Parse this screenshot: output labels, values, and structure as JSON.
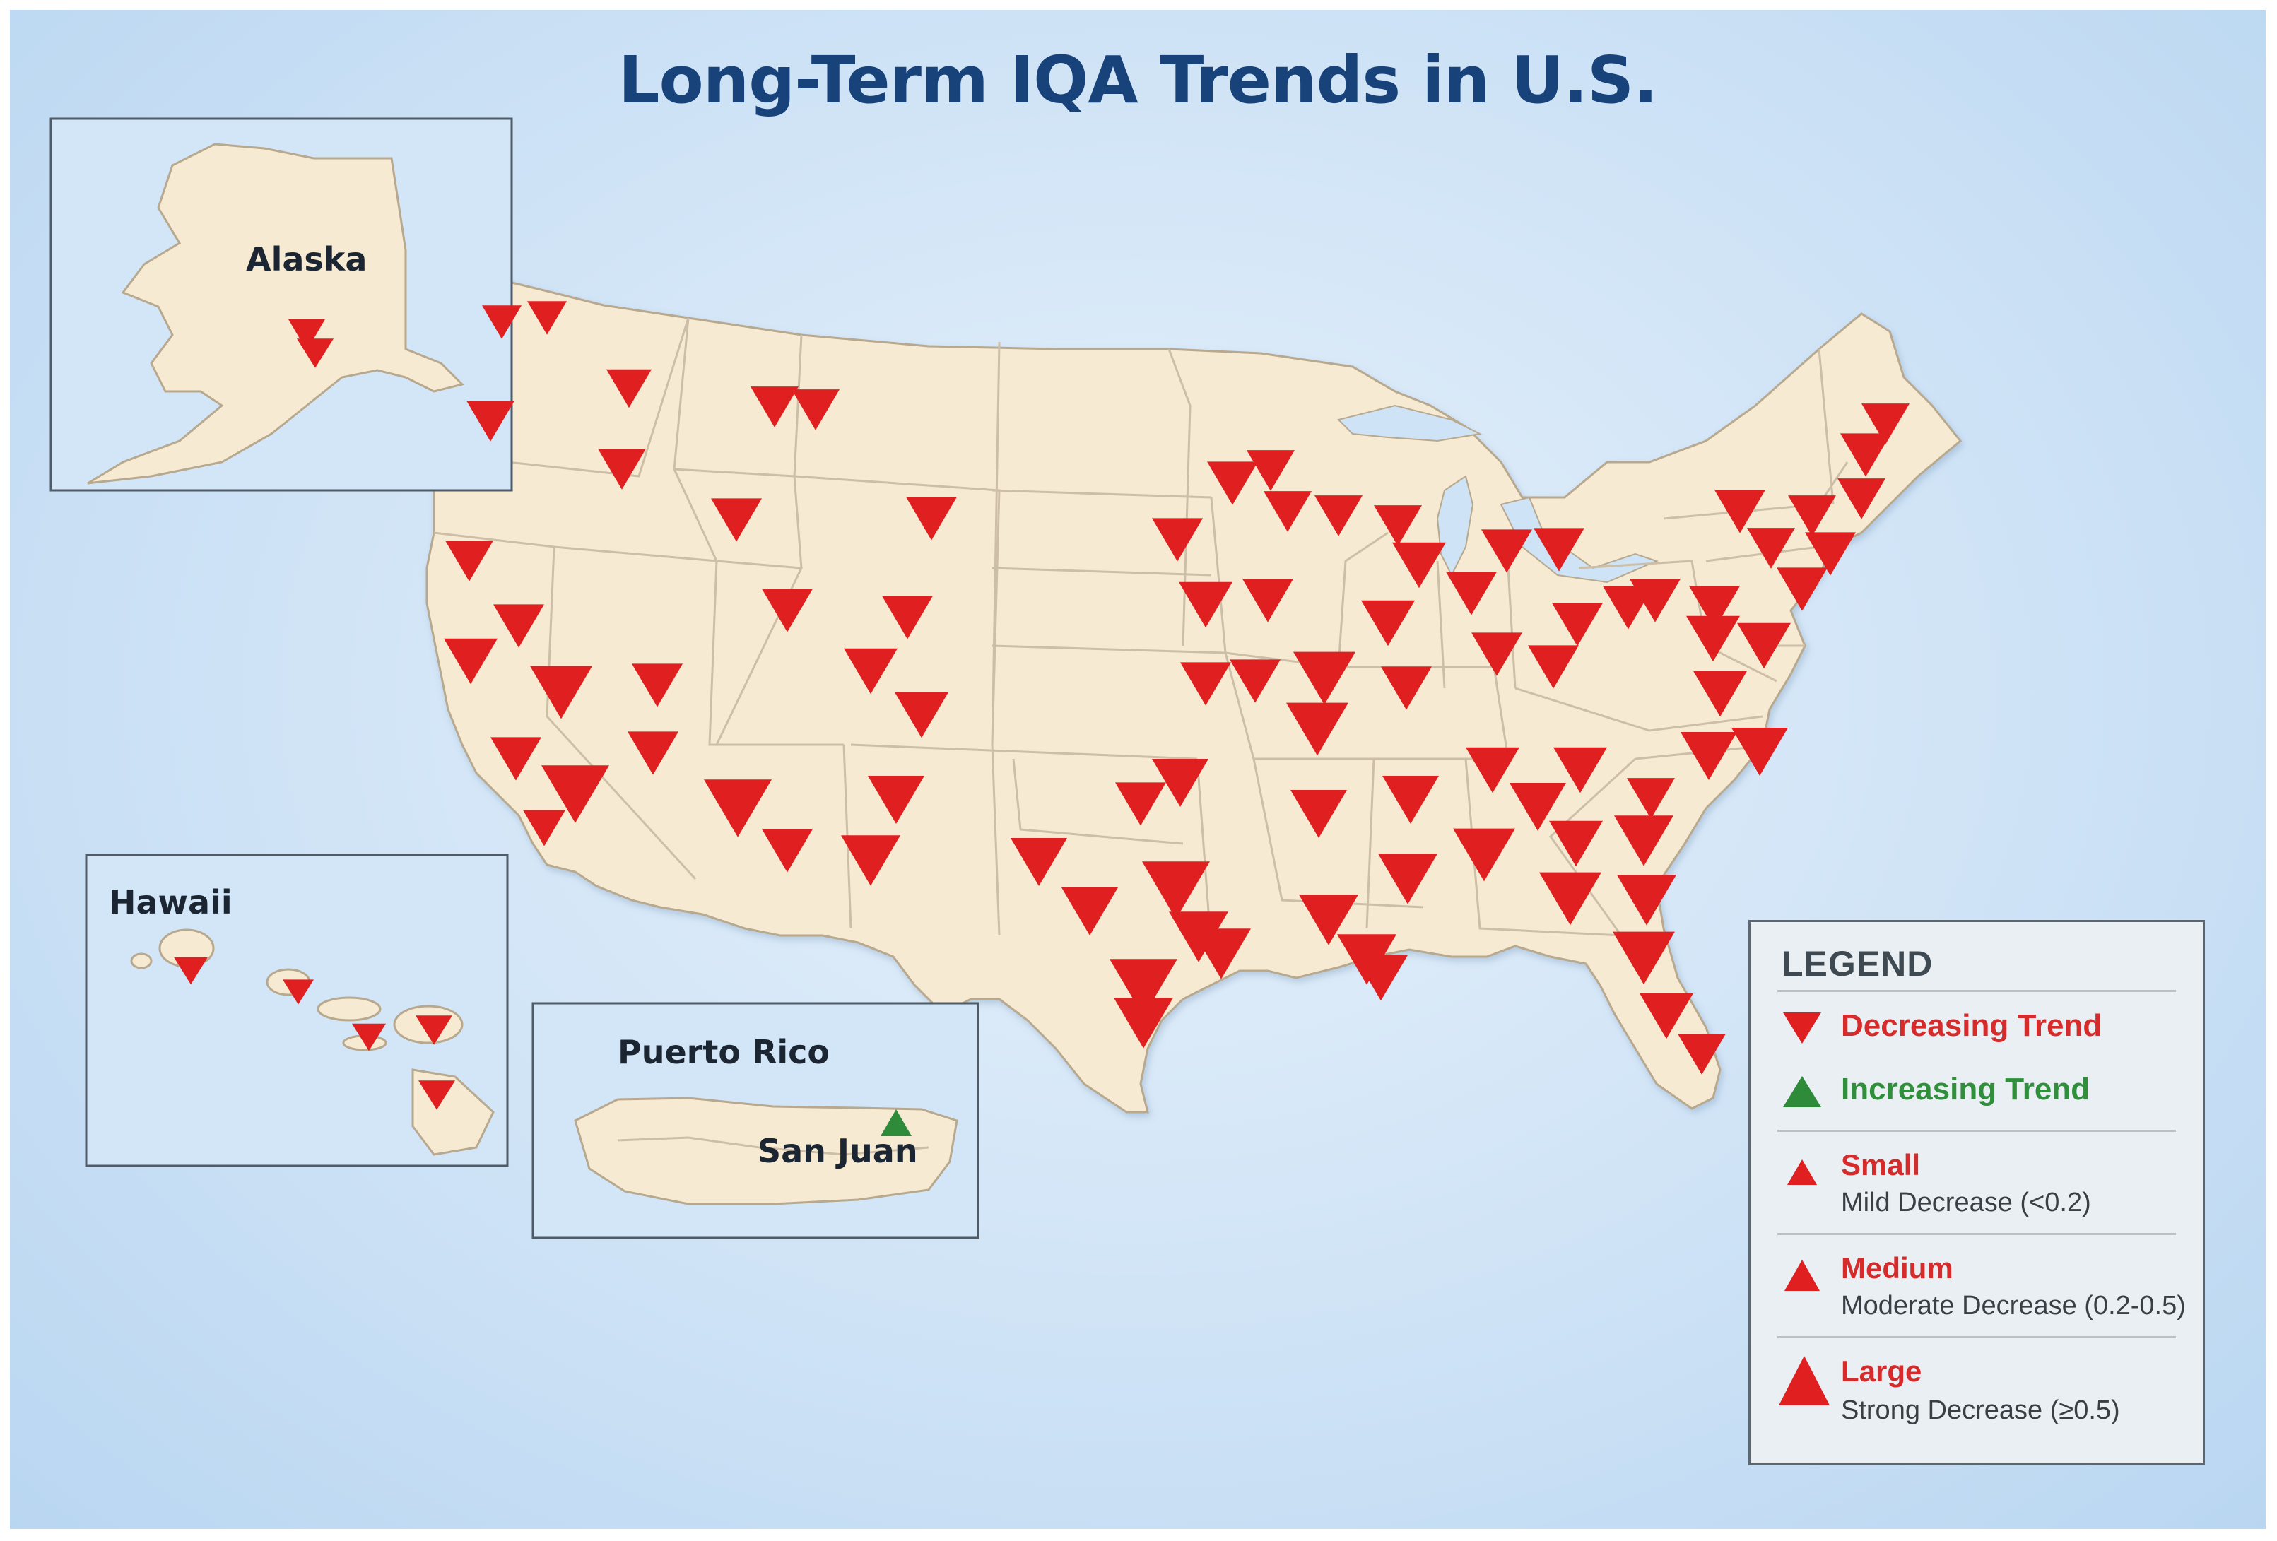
{
  "title": "Long-Term IQA Trends in U.S.",
  "insets": {
    "alaska": "Alaska",
    "hawaii": "Hawaii",
    "puerto_rico": "Puerto Rico",
    "san_juan": "San Juan"
  },
  "legend": {
    "title": "LEGEND",
    "decreasing": "Decreasing Trend",
    "increasing": "Increasing Trend",
    "small": "Small",
    "small_desc": "Mild Decrease (<0.2)",
    "medium": "Medium",
    "medium_desc": "Moderate Decrease (0.2-0.5)",
    "large": "Large",
    "large_desc": "Strong Decrease (≥0.5)"
  },
  "colors": {
    "decreasing": "#e02020",
    "increasing": "#2e8b3a",
    "land": "#f7ead2",
    "border": "#c9bca6",
    "title": "#17427a"
  },
  "marker_icons": [
    "down-triangle-icon",
    "up-triangle-icon"
  ]
}
